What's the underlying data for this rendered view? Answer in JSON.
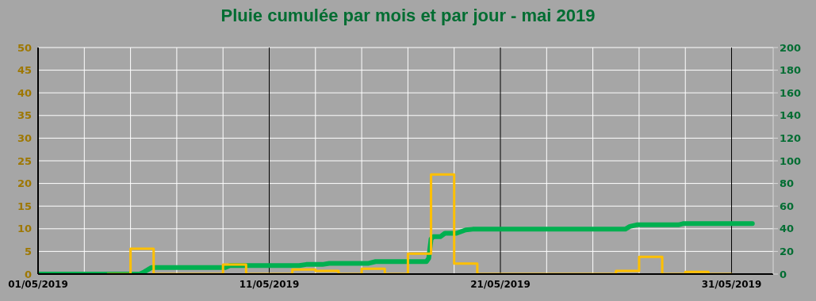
{
  "chart_data": {
    "type": "step",
    "title": "Pluie cumulée par mois et par jour - mai 2019",
    "xlim": [
      "2019-05-01",
      "2019-06-01T19:12"
    ],
    "xticks": [
      {
        "value": "2019-05-01",
        "label": "01/05/2019"
      },
      {
        "value": "2019-05-03",
        "label": null
      },
      {
        "value": "2019-05-05",
        "label": null
      },
      {
        "value": "2019-05-07",
        "label": null
      },
      {
        "value": "2019-05-09",
        "label": null
      },
      {
        "value": "2019-05-11",
        "label": "11/05/2019"
      },
      {
        "value": "2019-05-13",
        "label": null
      },
      {
        "value": "2019-05-15",
        "label": null
      },
      {
        "value": "2019-05-17",
        "label": null
      },
      {
        "value": "2019-05-19",
        "label": null
      },
      {
        "value": "2019-05-21",
        "label": "21/05/2019"
      },
      {
        "value": "2019-05-23",
        "label": null
      },
      {
        "value": "2019-05-25",
        "label": null
      },
      {
        "value": "2019-05-27",
        "label": null
      },
      {
        "value": "2019-05-29",
        "label": null
      },
      {
        "value": "2019-05-31",
        "label": "31/05/2019"
      }
    ],
    "ylim": [
      0,
      50
    ],
    "yticks": [
      0,
      5,
      10,
      15,
      20,
      25,
      30,
      35,
      40,
      45,
      50
    ],
    "y2lim": [
      0,
      200
    ],
    "y2ticks": [
      0,
      20,
      40,
      60,
      80,
      100,
      120,
      140,
      160,
      180,
      200
    ],
    "grid": true,
    "series": [
      {
        "color": "#ffc000",
        "x": [
          "2019-05-04",
          "2019-05-05",
          "2019-05-06",
          "2019-05-07",
          "2019-05-08",
          "2019-05-09",
          "2019-05-10",
          "2019-05-11",
          "2019-05-12",
          "2019-05-13",
          "2019-05-14",
          "2019-05-15",
          "2019-05-16",
          "2019-05-17",
          "2019-05-18",
          "2019-05-19",
          "2019-05-20",
          "2019-05-21",
          "2019-05-22",
          "2019-05-23",
          "2019-05-24",
          "2019-05-25",
          "2019-05-26",
          "2019-05-27",
          "2019-05-28",
          "2019-05-29",
          "2019-05-30",
          "2019-05-31"
        ],
        "values": [
          0,
          5.6,
          0,
          0,
          0,
          2.1,
          0,
          0,
          1,
          0.7,
          0,
          1.2,
          0,
          4.5,
          22,
          2.3,
          0,
          0,
          0,
          0,
          0,
          0,
          0.7,
          3.8,
          0,
          0.5,
          0,
          0
        ]
      },
      {
        "type": "line",
        "axis": "y2",
        "color": "#00b050",
        "x": [
          "2019-05-01",
          "2019-05-05T09:36",
          "2019-05-05T14:24",
          "2019-05-05T21:36",
          "2019-05-09T02:24",
          "2019-05-09T07:12",
          "2019-05-12T07:12",
          "2019-05-12T14:24",
          "2019-05-13T07:12",
          "2019-05-13T14:24",
          "2019-05-15T07:12",
          "2019-05-15T14:24",
          "2019-05-17T19:12",
          "2019-05-17T21:36",
          "2019-05-18",
          "2019-05-18T02:24",
          "2019-05-18T09:36",
          "2019-05-18T14:24",
          "2019-05-19T02:24",
          "2019-05-19T12:00",
          "2019-05-19T19:12",
          "2019-05-26T09:36",
          "2019-05-26T14:24",
          "2019-05-26T21:36",
          "2019-05-28T16:48",
          "2019-05-28T21:36",
          "2019-05-31T21:36"
        ],
        "values": [
          0,
          0,
          2,
          5.7,
          5.7,
          7.5,
          7.5,
          8.5,
          8.5,
          9.5,
          9.5,
          11,
          11,
          14,
          31,
          33,
          33,
          36,
          36,
          39,
          39.6,
          39.6,
          42,
          43.5,
          43.5,
          44.5,
          44.5
        ]
      }
    ]
  }
}
